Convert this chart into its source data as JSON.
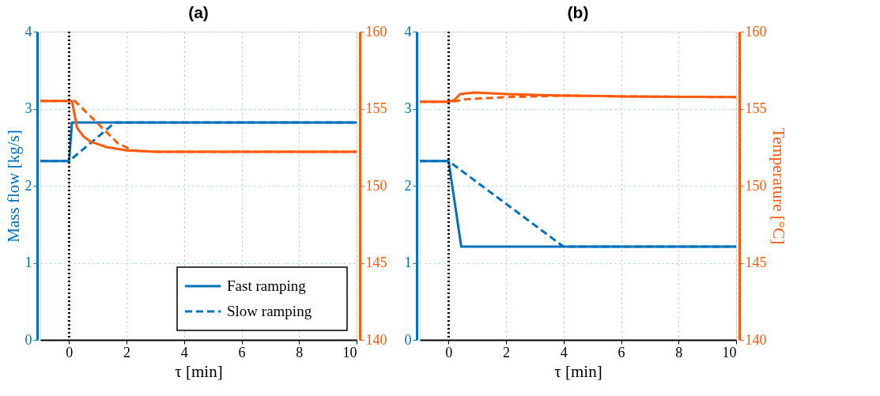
{
  "chart_data": [
    {
      "type": "line",
      "title": "(a)",
      "xlabel": "τ [min]",
      "ylabel": "Mass flow [kg/s]",
      "xlim": [
        -1,
        10
      ],
      "xticks": [
        0,
        2,
        4,
        6,
        8,
        10
      ],
      "ylim": [
        0,
        4
      ],
      "yticks": [
        0,
        1,
        2,
        3,
        4
      ],
      "y2lim": [
        140,
        160
      ],
      "y2ticks": [
        140,
        145,
        150,
        155,
        160
      ],
      "grid": true,
      "legend": "bottom right",
      "ref_lines": [
        {
          "axis": "x",
          "value": 0,
          "color": "#000000",
          "line_style": "dotted"
        }
      ],
      "series": [
        {
          "name": "Fast ramping",
          "color": "#0072bd",
          "line_style": "solid",
          "x": [
            -1,
            0,
            0.1,
            10
          ],
          "values": [
            2.32,
            2.32,
            2.82,
            2.82
          ]
        },
        {
          "name": "Slow ramping",
          "color": "#0072bd",
          "line_style": "dashed",
          "x": [
            -1,
            0,
            1.6,
            10
          ],
          "values": [
            2.32,
            2.32,
            2.82,
            2.82
          ]
        },
        {
          "color": "#ff5a0a",
          "line_style": "solid",
          "axis": "y2",
          "x": [
            -1,
            0.1,
            0.28,
            0.5,
            0.76,
            1.0,
            1.32,
            2,
            3,
            4,
            10
          ],
          "values": [
            155.5,
            155.5,
            153.75,
            153.2,
            152.85,
            152.7,
            152.5,
            152.3,
            152.2,
            152.2,
            152.2
          ]
        },
        {
          "color": "#ff5a0a",
          "line_style": "dashed",
          "axis": "y2",
          "x": [
            -1,
            0.2,
            1.7,
            2.2,
            3,
            10
          ],
          "values": [
            155.5,
            155.5,
            152.75,
            152.3,
            152.2,
            152.2
          ]
        }
      ]
    },
    {
      "type": "line",
      "title": "(b)",
      "xlabel": "τ [min]",
      "y2label": "Temperature [°C]",
      "xlim": [
        -1,
        10
      ],
      "xticks": [
        0,
        2,
        4,
        6,
        8,
        10
      ],
      "ylim": [
        0,
        4
      ],
      "yticks": [
        0,
        1,
        2,
        3,
        4
      ],
      "y2lim": [
        140,
        160
      ],
      "y2ticks": [
        140,
        145,
        150,
        155,
        160
      ],
      "grid": true,
      "ref_lines": [
        {
          "axis": "x",
          "value": 0,
          "color": "#000000",
          "line_style": "dotted"
        }
      ],
      "series": [
        {
          "color": "#0072bd",
          "line_style": "solid",
          "x": [
            -1,
            0,
            0.44,
            10
          ],
          "values": [
            2.32,
            2.32,
            1.21,
            1.21
          ]
        },
        {
          "color": "#0072bd",
          "line_style": "dashed",
          "x": [
            -1,
            0,
            4.0,
            10
          ],
          "values": [
            2.32,
            2.32,
            1.21,
            1.21
          ]
        },
        {
          "color": "#ff5a0a",
          "line_style": "solid",
          "axis": "y2",
          "x": [
            -1,
            0,
            0.2,
            0.4,
            0.9,
            2,
            4,
            6,
            10
          ],
          "values": [
            155.45,
            155.45,
            155.55,
            155.95,
            156.05,
            155.95,
            155.85,
            155.8,
            155.75
          ]
        },
        {
          "color": "#ff5a0a",
          "line_style": "dashed",
          "axis": "y2",
          "x": [
            -1,
            0,
            0.3,
            0.5,
            1,
            2,
            3,
            4,
            6,
            10
          ],
          "values": [
            155.45,
            155.45,
            155.5,
            155.6,
            155.65,
            155.75,
            155.8,
            155.85,
            155.8,
            155.75
          ]
        }
      ]
    }
  ]
}
